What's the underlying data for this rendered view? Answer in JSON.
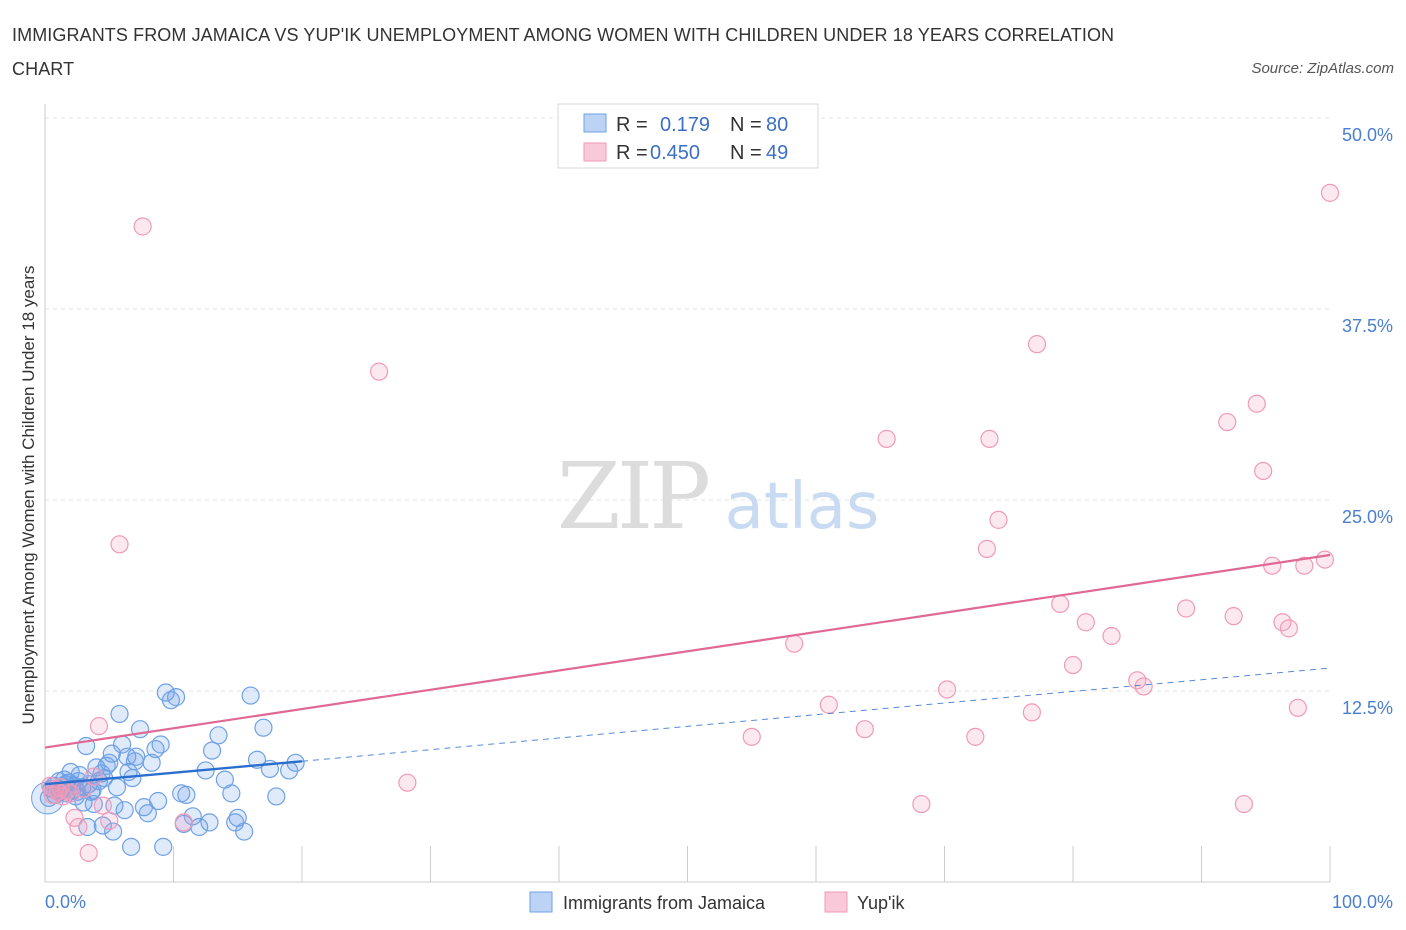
{
  "title": "IMMIGRANTS FROM JAMAICA VS YUP'IK UNEMPLOYMENT AMONG WOMEN WITH CHILDREN UNDER 18 YEARS CORRELATION CHART",
  "source": "Source: ZipAtlas.com",
  "watermark": {
    "zip": "ZIP",
    "atlas": "atlas"
  },
  "legend": {
    "r_label": "R =",
    "n_label": "N =",
    "rows": [
      {
        "r": "0.179",
        "n": "80"
      },
      {
        "r": "0.450",
        "n": "49"
      }
    ]
  },
  "colors": {
    "jamaica": "#6fa1e6",
    "jamaica_line": "#2b6fce",
    "yupik": "#f19ab8",
    "yupik_line": "#e06894",
    "axis_text": "#4a7fd0"
  },
  "chart_data": {
    "type": "scatter",
    "xlabel": "",
    "ylabel": "Unemployment Among Women with Children Under 18 years",
    "xlim": [
      0,
      100
    ],
    "ylim": [
      0,
      50
    ],
    "x_tick_labels": [
      "0.0%",
      "100.0%"
    ],
    "y_tick_labels": [
      "12.5%",
      "25.0%",
      "37.5%",
      "50.0%"
    ],
    "y_ticks": [
      12.5,
      25.0,
      37.5,
      50.0
    ],
    "legend_position": "top-center",
    "series": [
      {
        "name": "Immigrants from Jamaica",
        "r": 0.179,
        "n": 80,
        "trend": {
          "x": [
            0,
            20
          ],
          "y": [
            6.4,
            7.9
          ]
        },
        "trend_extension": {
          "x": [
            20,
            100
          ],
          "y": [
            7.9,
            14.0
          ]
        },
        "points": [
          [
            0.3,
            5.5
          ],
          [
            0.5,
            6.1
          ],
          [
            0.7,
            6.3
          ],
          [
            0.9,
            6.0
          ],
          [
            1.1,
            6.6
          ],
          [
            1.2,
            5.9
          ],
          [
            1.4,
            6.2
          ],
          [
            1.6,
            6.4
          ],
          [
            1.7,
            5.8
          ],
          [
            1.9,
            6.5
          ],
          [
            2.1,
            6.0
          ],
          [
            2.3,
            6.3
          ],
          [
            2.5,
            5.9
          ],
          [
            2.7,
            7.0
          ],
          [
            2.9,
            6.2
          ],
          [
            3.0,
            5.2
          ],
          [
            3.2,
            8.9
          ],
          [
            3.4,
            6.4
          ],
          [
            3.6,
            5.9
          ],
          [
            3.8,
            5.1
          ],
          [
            4.0,
            7.5
          ],
          [
            4.2,
            6.6
          ],
          [
            4.4,
            7.1
          ],
          [
            4.6,
            6.8
          ],
          [
            4.8,
            7.6
          ],
          [
            5.0,
            7.8
          ],
          [
            5.2,
            8.4
          ],
          [
            5.4,
            5.0
          ],
          [
            5.6,
            6.2
          ],
          [
            5.8,
            11.0
          ],
          [
            6.0,
            9.0
          ],
          [
            6.2,
            4.7
          ],
          [
            6.5,
            7.2
          ],
          [
            6.8,
            6.8
          ],
          [
            7.1,
            8.2
          ],
          [
            7.4,
            10.0
          ],
          [
            7.7,
            4.9
          ],
          [
            8.0,
            4.5
          ],
          [
            8.3,
            7.8
          ],
          [
            8.6,
            8.7
          ],
          [
            9.0,
            9.0
          ],
          [
            9.4,
            12.4
          ],
          [
            9.8,
            11.9
          ],
          [
            10.2,
            12.1
          ],
          [
            10.6,
            5.8
          ],
          [
            11.0,
            5.7
          ],
          [
            11.5,
            4.3
          ],
          [
            12.0,
            3.6
          ],
          [
            12.5,
            7.3
          ],
          [
            13.0,
            8.6
          ],
          [
            13.5,
            9.6
          ],
          [
            14.0,
            6.7
          ],
          [
            14.5,
            5.8
          ],
          [
            15.0,
            4.2
          ],
          [
            15.5,
            3.3
          ],
          [
            16.0,
            12.2
          ],
          [
            16.5,
            8.0
          ],
          [
            17.0,
            10.1
          ],
          [
            17.5,
            7.4
          ],
          [
            18.0,
            5.6
          ],
          [
            19.0,
            7.3
          ],
          [
            19.5,
            7.8
          ],
          [
            1.5,
            6.7
          ],
          [
            2.0,
            7.2
          ],
          [
            3.3,
            3.6
          ],
          [
            4.5,
            3.7
          ],
          [
            5.3,
            3.3
          ],
          [
            6.7,
            2.3
          ],
          [
            9.2,
            2.3
          ],
          [
            10.8,
            3.8
          ],
          [
            12.8,
            3.9
          ],
          [
            14.8,
            3.9
          ],
          [
            2.6,
            6.6
          ],
          [
            3.7,
            6.0
          ],
          [
            6.4,
            8.2
          ],
          [
            7.0,
            7.9
          ],
          [
            8.8,
            5.3
          ],
          [
            0.8,
            5.7
          ],
          [
            1.8,
            6.5
          ],
          [
            2.4,
            5.6
          ]
        ]
      },
      {
        "name": "Yup'ik",
        "r": 0.45,
        "n": 49,
        "trend": {
          "x": [
            0,
            100
          ],
          "y": [
            8.8,
            21.4
          ]
        },
        "points": [
          [
            0.4,
            6.3
          ],
          [
            0.6,
            5.7
          ],
          [
            0.8,
            6.1
          ],
          [
            1.0,
            5.9
          ],
          [
            1.2,
            6.2
          ],
          [
            1.4,
            5.6
          ],
          [
            1.7,
            6.0
          ],
          [
            2.0,
            5.8
          ],
          [
            2.3,
            4.2
          ],
          [
            2.6,
            3.6
          ],
          [
            3.0,
            6.1
          ],
          [
            3.4,
            1.9
          ],
          [
            3.8,
            6.9
          ],
          [
            4.2,
            10.2
          ],
          [
            4.5,
            5.0
          ],
          [
            5.0,
            4.0
          ],
          [
            5.8,
            22.1
          ],
          [
            7.6,
            42.9
          ],
          [
            10.8,
            3.9
          ],
          [
            26.0,
            33.4
          ],
          [
            28.2,
            6.5
          ],
          [
            55.0,
            9.5
          ],
          [
            58.3,
            15.6
          ],
          [
            61.0,
            11.6
          ],
          [
            63.8,
            10.0
          ],
          [
            65.5,
            29.0
          ],
          [
            68.2,
            5.1
          ],
          [
            70.2,
            12.6
          ],
          [
            72.4,
            9.5
          ],
          [
            73.3,
            21.8
          ],
          [
            73.5,
            29.0
          ],
          [
            74.2,
            23.7
          ],
          [
            76.8,
            11.1
          ],
          [
            77.2,
            35.2
          ],
          [
            79.0,
            18.2
          ],
          [
            80.0,
            14.2
          ],
          [
            81.0,
            17.0
          ],
          [
            83.0,
            16.1
          ],
          [
            85.0,
            13.2
          ],
          [
            85.5,
            12.8
          ],
          [
            88.8,
            17.9
          ],
          [
            92.0,
            30.1
          ],
          [
            92.5,
            17.4
          ],
          [
            93.3,
            5.1
          ],
          [
            94.3,
            31.3
          ],
          [
            94.8,
            26.9
          ],
          [
            95.5,
            20.7
          ],
          [
            96.3,
            17.0
          ],
          [
            97.5,
            11.4
          ]
        ],
        "extra_points": [
          [
            96.8,
            16.6
          ],
          [
            98.0,
            20.7
          ],
          [
            99.6,
            21.1
          ],
          [
            100.0,
            45.1
          ]
        ]
      }
    ]
  },
  "bottom_legend": [
    {
      "label": "Immigrants from Jamaica"
    },
    {
      "label": "Yup'ik"
    }
  ]
}
